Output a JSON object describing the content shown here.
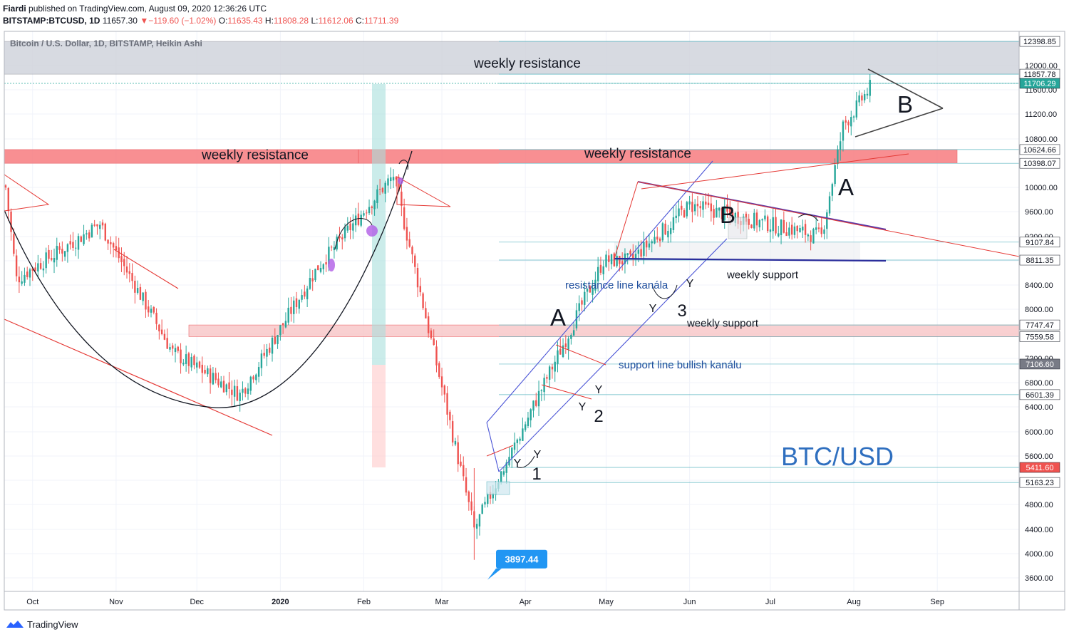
{
  "header": {
    "author": "Fiardi",
    "published_text": "published on TradingView.com, August 09, 2020 12:36:26 UTC",
    "symbol": "BITSTAMP:BTCUSD, 1D",
    "price": "11657.30",
    "change_arrow": "▼",
    "change": "−119.60 (−1.02%)",
    "o_label": "O:",
    "o_value": "11635.43",
    "h_label": "H:",
    "h_value": "11808.28",
    "l_label": "L:",
    "l_value": "11612.06",
    "c_label": "C:",
    "c_value": "11711.39"
  },
  "chart_data": {
    "type": "candlestick",
    "legend_title": "Bitcoin / U.S. Dollar, 1D, BITSTAMP, Heikin Ashi",
    "watermark": "BTC/USD",
    "y_ticks": [
      3600,
      4000,
      4400,
      4800,
      5200,
      5600,
      6000,
      6400,
      6800,
      7200,
      7600,
      8000,
      8400,
      8800,
      9200,
      9600,
      10000,
      10400,
      10800,
      11200,
      11600,
      12000
    ],
    "y_tick_labels": [
      "3600.00",
      "4000.00",
      "4400.00",
      "4800.00",
      "",
      "5600.00",
      "6000.00",
      "6400.00",
      "6800.00",
      "7200.00",
      "",
      "8000.00",
      "8400.00",
      "",
      "9200.00",
      "9600.00",
      "10000.00",
      "",
      "10800.00",
      "11200.00",
      "11600.00",
      "12000.00"
    ],
    "x_ticks": [
      "Oct",
      "Nov",
      "Dec",
      "2020",
      "Feb",
      "Mar",
      "Apr",
      "May",
      "Jun",
      "Jul",
      "Aug",
      "Sep"
    ],
    "price_flags": [
      {
        "label": "12398.85",
        "value": 12398.85,
        "bg": "#ffffff",
        "fg": "#131722"
      },
      {
        "label": "11857.78",
        "value": 11857.78,
        "bg": "#ffffff",
        "fg": "#131722"
      },
      {
        "label": "11706.29",
        "value": 11706.29,
        "bg": "#26a69a",
        "fg": "#ffffff"
      },
      {
        "label": "10624.66",
        "value": 10624.66,
        "bg": "#ffffff",
        "fg": "#131722"
      },
      {
        "label": "10398.07",
        "value": 10398.07,
        "bg": "#ffffff",
        "fg": "#131722"
      },
      {
        "label": "9107.84",
        "value": 9107.84,
        "bg": "#ffffff",
        "fg": "#131722"
      },
      {
        "label": "8811.35",
        "value": 8811.35,
        "bg": "#ffffff",
        "fg": "#131722"
      },
      {
        "label": "7747.47",
        "value": 7747.47,
        "bg": "#ffffff",
        "fg": "#131722"
      },
      {
        "label": "7559.58",
        "value": 7559.58,
        "bg": "#ffffff",
        "fg": "#131722"
      },
      {
        "label": "7106.60",
        "value": 7106.6,
        "bg": "#787b86",
        "fg": "#ffffff"
      },
      {
        "label": "6601.39",
        "value": 6601.39,
        "bg": "#ffffff",
        "fg": "#131722"
      },
      {
        "label": "5411.60",
        "value": 5411.6,
        "bg": "#ef5350",
        "fg": "#ffffff"
      },
      {
        "label": "5163.23",
        "value": 5163.23,
        "bg": "#ffffff",
        "fg": "#131722"
      }
    ],
    "zones": [
      {
        "label": "weekly resistance",
        "top": 12398.85,
        "bottom": 11857.78,
        "color": "#d1d4dc"
      },
      {
        "label": "weekly resistance",
        "top": 10624.66,
        "bottom": 10398.07,
        "color": "#f77c80"
      },
      {
        "label": "weekly resistance",
        "top": 10624.66,
        "bottom": 10398.07,
        "color": "#f77c80"
      },
      {
        "label": "weekly support",
        "top": 7747.47,
        "bottom": 7559.58,
        "color": "#f8c8c9"
      },
      {
        "label": "weekly support",
        "top": 9107.84,
        "bottom": 8811.35,
        "color": "#e8e9ed"
      }
    ],
    "annotations": [
      {
        "text": "resistance line kanála",
        "color": "#1c4c9c"
      },
      {
        "text": "support line bullish kanálu",
        "color": "#1c4c9c"
      },
      {
        "text": "A"
      },
      {
        "text": "A"
      },
      {
        "text": "B"
      },
      {
        "text": "B"
      },
      {
        "text": "1"
      },
      {
        "text": "2"
      },
      {
        "text": "3"
      },
      {
        "text": "Y"
      },
      {
        "text": "Y"
      },
      {
        "text": "Y"
      },
      {
        "text": "Y"
      },
      {
        "text": "Y"
      },
      {
        "text": "Y"
      }
    ],
    "low_marker": {
      "label": "3897.44",
      "value": 3897.44
    },
    "series_key_points": [
      {
        "date": "2019-09-21",
        "price": 10000
      },
      {
        "date": "2019-09-25",
        "price": 8500
      },
      {
        "date": "2019-10-26",
        "price": 9400
      },
      {
        "date": "2019-11-22",
        "price": 7300
      },
      {
        "date": "2019-12-17",
        "price": 6600
      },
      {
        "date": "2020-01-15",
        "price": 8700
      },
      {
        "date": "2020-02-12",
        "price": 10200
      },
      {
        "date": "2020-03-13",
        "price": 4400
      },
      {
        "date": "2020-04-30",
        "price": 8800
      },
      {
        "date": "2020-05-10",
        "price": 8800
      },
      {
        "date": "2020-06-01",
        "price": 9700
      },
      {
        "date": "2020-07-20",
        "price": 9200
      },
      {
        "date": "2020-07-28",
        "price": 11000
      },
      {
        "date": "2020-08-08",
        "price": 11700
      }
    ]
  },
  "footer": {
    "brand": "TradingView"
  }
}
